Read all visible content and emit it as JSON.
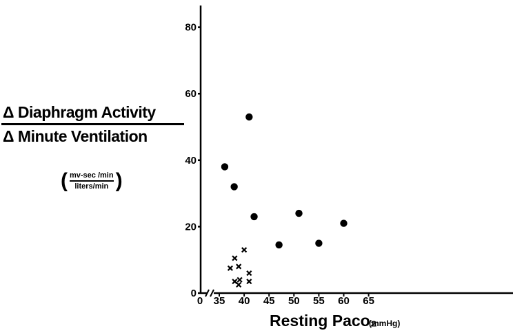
{
  "chart_data": {
    "type": "scatter",
    "title": "",
    "ylabel_numerator": "Δ Diaphragm Activity",
    "ylabel_denominator": "Δ Minute Ventilation",
    "yunits_numerator": "mv-sec /min",
    "yunits_denominator": "liters/min",
    "xlabel": "Resting Paco₂",
    "xunits": "(mmHg)",
    "xlim": [
      35,
      65
    ],
    "ylim": [
      0,
      80
    ],
    "x_axis_break": true,
    "x_zero_label": "0",
    "xticks": [
      35,
      40,
      45,
      50,
      55,
      60,
      65
    ],
    "yticks": [
      0,
      20,
      40,
      60,
      80
    ],
    "grid": false,
    "series": [
      {
        "marker": "circle",
        "points": [
          {
            "x": 36.1,
            "y": 38
          },
          {
            "x": 38.0,
            "y": 32
          },
          {
            "x": 41.0,
            "y": 53
          },
          {
            "x": 42.0,
            "y": 23
          },
          {
            "x": 47.0,
            "y": 14.5
          },
          {
            "x": 51.0,
            "y": 24
          },
          {
            "x": 55.0,
            "y": 15
          },
          {
            "x": 60.0,
            "y": 21
          }
        ]
      },
      {
        "marker": "x",
        "points": [
          {
            "x": 37.2,
            "y": 7.5
          },
          {
            "x": 38.1,
            "y": 10.5
          },
          {
            "x": 38.1,
            "y": 3.5
          },
          {
            "x": 38.9,
            "y": 8
          },
          {
            "x": 39.1,
            "y": 4
          },
          {
            "x": 38.9,
            "y": 2.5
          },
          {
            "x": 40.0,
            "y": 13
          },
          {
            "x": 41.0,
            "y": 6
          },
          {
            "x": 41.0,
            "y": 3.5
          }
        ]
      }
    ]
  }
}
